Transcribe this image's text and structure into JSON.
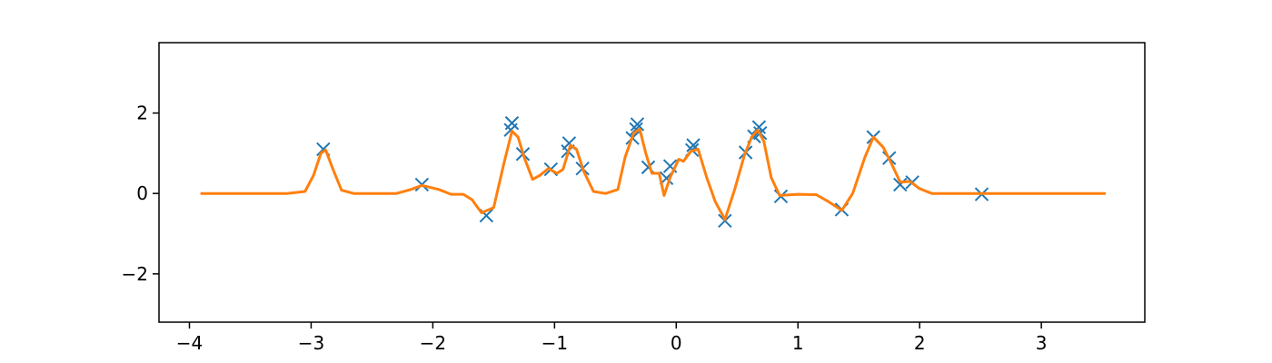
{
  "chart_data": {
    "type": "scatter",
    "title": "",
    "xlabel": "",
    "ylabel": "",
    "xlim": [
      -4.25,
      3.85
    ],
    "ylim": [
      -3.2,
      3.75
    ],
    "grid": false,
    "x_ticks": [
      {
        "value": -4,
        "label": "−4"
      },
      {
        "value": -3,
        "label": "−3"
      },
      {
        "value": -2,
        "label": "−2"
      },
      {
        "value": -1,
        "label": "−1"
      },
      {
        "value": 0,
        "label": "0"
      },
      {
        "value": 1,
        "label": "1"
      },
      {
        "value": 2,
        "label": "2"
      },
      {
        "value": 3,
        "label": "3"
      }
    ],
    "y_ticks": [
      {
        "value": -2,
        "label": "−2"
      },
      {
        "value": 0,
        "label": "0"
      },
      {
        "value": 2,
        "label": "2"
      }
    ],
    "colors": {
      "markers": "#1f77b4",
      "curve": "#ff7f0e",
      "axes": "#000000"
    },
    "series": [
      {
        "kind": "markers",
        "marker": "x",
        "points": [
          [
            -2.9,
            1.1
          ],
          [
            -2.09,
            0.22
          ],
          [
            -1.56,
            -0.55
          ],
          [
            -1.35,
            1.75
          ],
          [
            -1.36,
            1.58
          ],
          [
            -1.26,
            0.98
          ],
          [
            -1.03,
            0.6
          ],
          [
            -0.88,
            1.25
          ],
          [
            -0.89,
            1.05
          ],
          [
            -0.77,
            0.62
          ],
          [
            -0.36,
            1.38
          ],
          [
            -0.32,
            1.72
          ],
          [
            -0.33,
            1.6
          ],
          [
            -0.23,
            0.65
          ],
          [
            -0.08,
            0.38
          ],
          [
            -0.05,
            0.68
          ],
          [
            0.13,
            1.08
          ],
          [
            0.14,
            1.2
          ],
          [
            0.4,
            -0.68
          ],
          [
            0.57,
            1.02
          ],
          [
            0.64,
            1.42
          ],
          [
            0.68,
            1.65
          ],
          [
            0.69,
            1.5
          ],
          [
            0.86,
            -0.07
          ],
          [
            1.36,
            -0.4
          ],
          [
            1.62,
            1.4
          ],
          [
            1.75,
            0.88
          ],
          [
            1.84,
            0.22
          ],
          [
            1.94,
            0.28
          ],
          [
            2.51,
            -0.02
          ]
        ]
      },
      {
        "kind": "line",
        "points": [
          [
            -3.9,
            0
          ],
          [
            -3.2,
            0
          ],
          [
            -3.05,
            0.05
          ],
          [
            -2.98,
            0.45
          ],
          [
            -2.92,
            1.0
          ],
          [
            -2.88,
            1.08
          ],
          [
            -2.82,
            0.6
          ],
          [
            -2.75,
            0.08
          ],
          [
            -2.65,
            0
          ],
          [
            -2.3,
            0
          ],
          [
            -2.18,
            0.1
          ],
          [
            -2.09,
            0.2
          ],
          [
            -1.95,
            0.1
          ],
          [
            -1.85,
            -0.02
          ],
          [
            -1.75,
            -0.02
          ],
          [
            -1.68,
            -0.15
          ],
          [
            -1.6,
            -0.48
          ],
          [
            -1.5,
            -0.35
          ],
          [
            -1.42,
            0.7
          ],
          [
            -1.35,
            1.55
          ],
          [
            -1.3,
            1.4
          ],
          [
            -1.25,
            0.9
          ],
          [
            -1.18,
            0.35
          ],
          [
            -1.12,
            0.45
          ],
          [
            -1.05,
            0.62
          ],
          [
            -0.98,
            0.5
          ],
          [
            -0.93,
            0.6
          ],
          [
            -0.87,
            1.2
          ],
          [
            -0.82,
            1.1
          ],
          [
            -0.76,
            0.55
          ],
          [
            -0.68,
            0.05
          ],
          [
            -0.58,
            0
          ],
          [
            -0.48,
            0.1
          ],
          [
            -0.42,
            0.9
          ],
          [
            -0.35,
            1.5
          ],
          [
            -0.3,
            1.6
          ],
          [
            -0.25,
            1.0
          ],
          [
            -0.2,
            0.5
          ],
          [
            -0.14,
            0.5
          ],
          [
            -0.1,
            -0.05
          ],
          [
            -0.05,
            0.4
          ],
          [
            0.02,
            0.85
          ],
          [
            0.06,
            0.8
          ],
          [
            0.12,
            1.05
          ],
          [
            0.18,
            1.1
          ],
          [
            0.25,
            0.4
          ],
          [
            0.32,
            -0.2
          ],
          [
            0.4,
            -0.65
          ],
          [
            0.48,
            0.1
          ],
          [
            0.56,
            0.95
          ],
          [
            0.62,
            1.4
          ],
          [
            0.67,
            1.58
          ],
          [
            0.72,
            1.3
          ],
          [
            0.78,
            0.4
          ],
          [
            0.85,
            -0.05
          ],
          [
            1.0,
            -0.02
          ],
          [
            1.15,
            -0.03
          ],
          [
            1.25,
            -0.2
          ],
          [
            1.36,
            -0.42
          ],
          [
            1.45,
            0
          ],
          [
            1.55,
            0.9
          ],
          [
            1.62,
            1.4
          ],
          [
            1.7,
            1.15
          ],
          [
            1.76,
            0.8
          ],
          [
            1.84,
            0.28
          ],
          [
            1.92,
            0.3
          ],
          [
            2.0,
            0.12
          ],
          [
            2.1,
            0
          ],
          [
            2.5,
            0
          ],
          [
            3.52,
            0
          ]
        ]
      }
    ]
  }
}
